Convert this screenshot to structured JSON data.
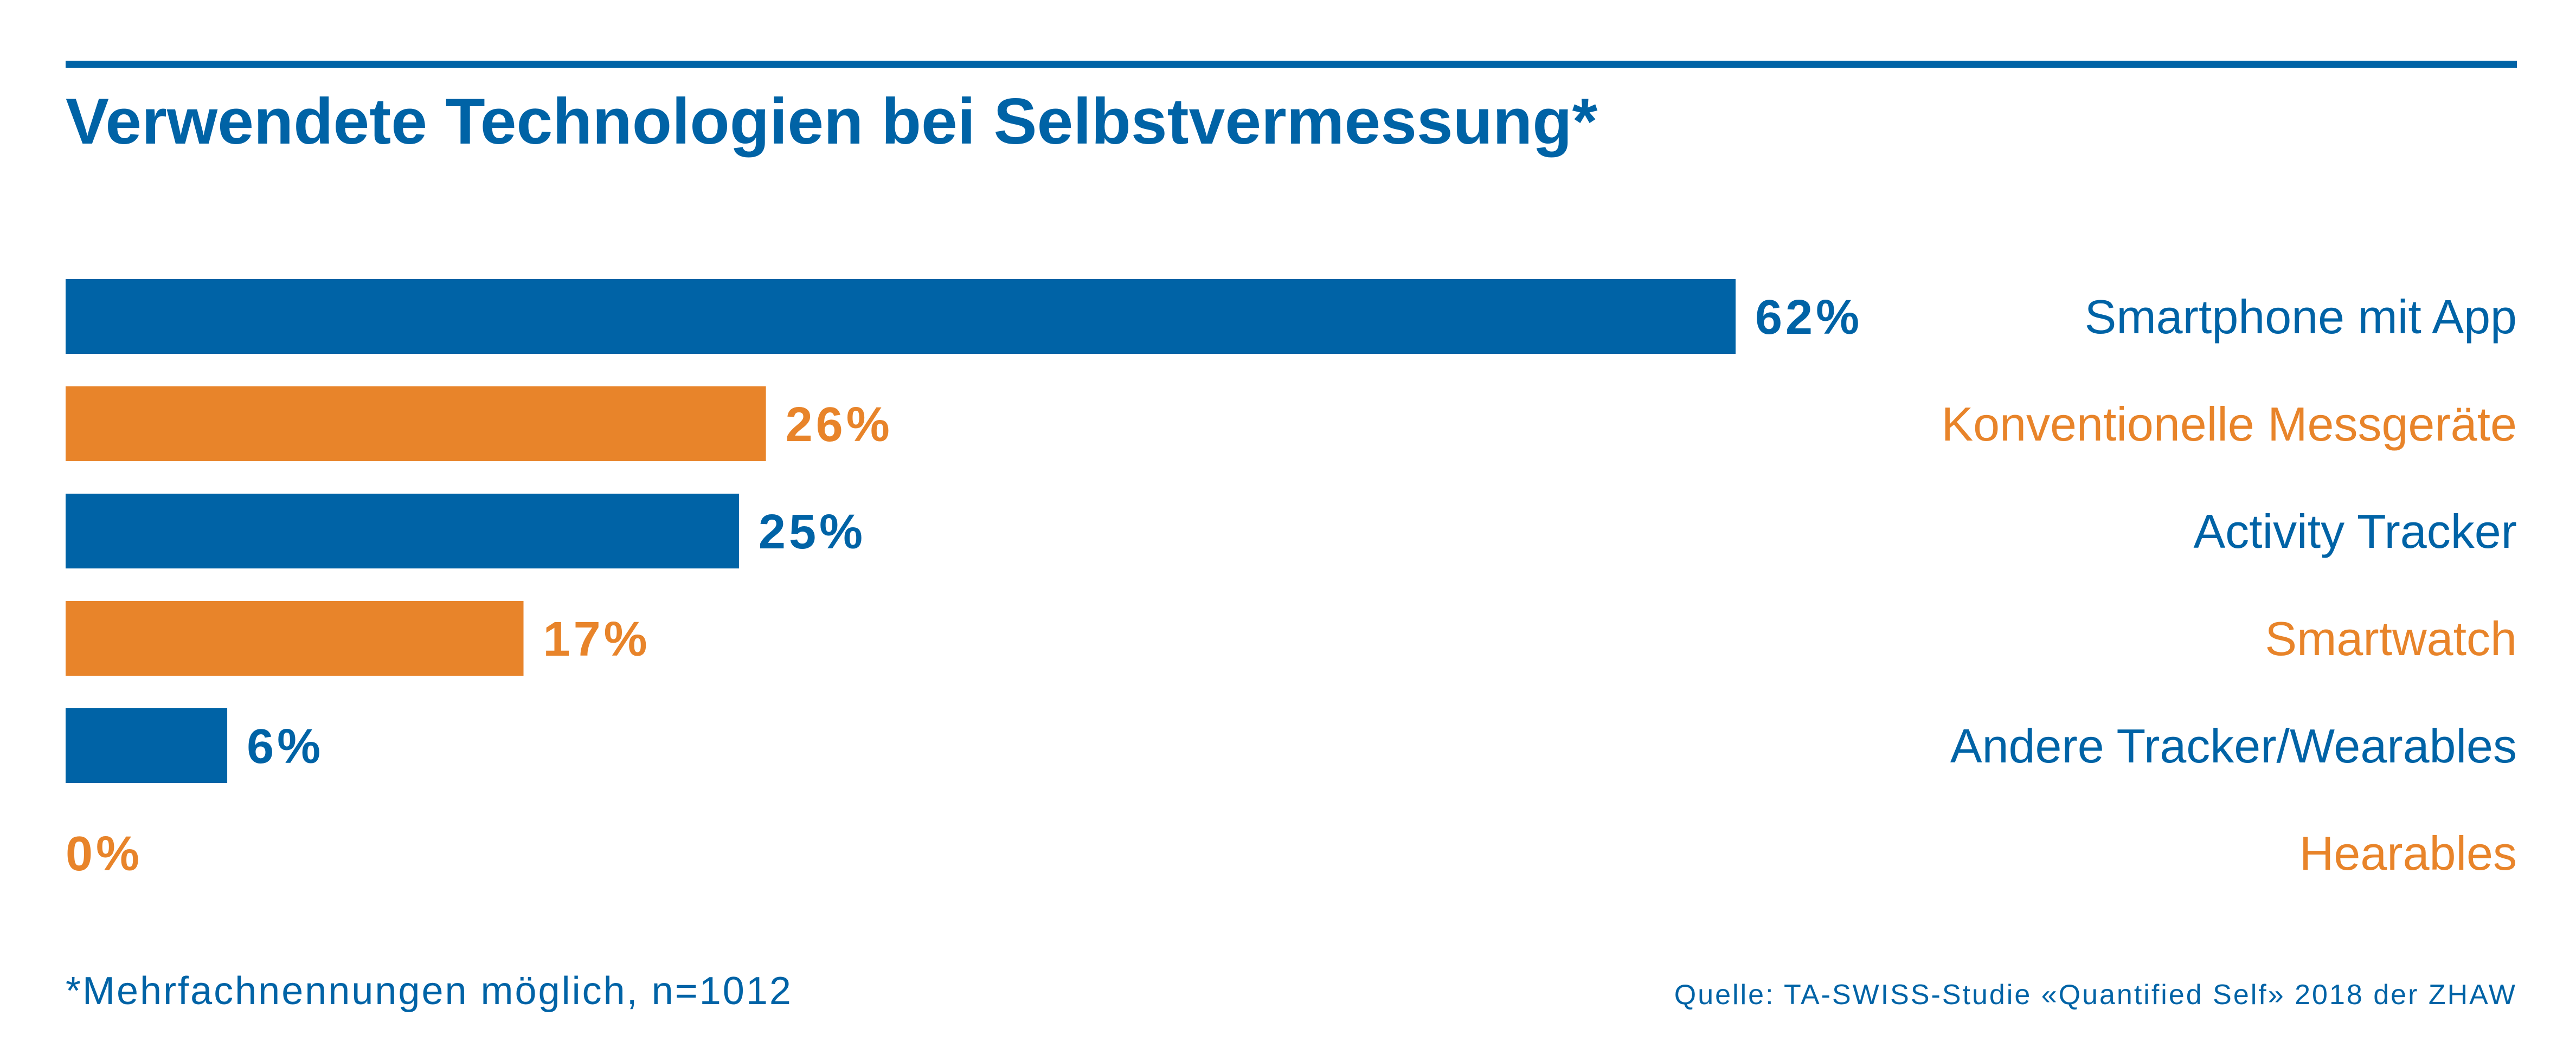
{
  "colors": {
    "blue": "#0063a6",
    "orange": "#e8842a",
    "rule": "#0063a6",
    "background": "#ffffff"
  },
  "chart_data": {
    "type": "bar",
    "orientation": "horizontal",
    "title": "Verwendete Technologien bei Selbstvermessung*",
    "xlim": [
      0,
      100
    ],
    "grid": false,
    "legend": "none",
    "categories": [
      "Smartphone mit App",
      "Konventionelle Messgeräte",
      "Activity Tracker",
      "Smartwatch",
      "Andere Tracker/Wearables",
      "Hearables"
    ],
    "values": [
      62,
      26,
      25,
      17,
      6,
      0
    ],
    "value_labels": [
      "62%",
      "26%",
      "25%",
      "17%",
      "6%",
      "0%"
    ],
    "bar_colors": [
      "#0063a6",
      "#e8842a",
      "#0063a6",
      "#e8842a",
      "#0063a6",
      "#e8842a"
    ],
    "footnote": "*Mehrfachnennungen möglich, n=1012",
    "source": "Quelle: TA-SWISS-Studie «Quantified Self» 2018 der ZHAW"
  }
}
